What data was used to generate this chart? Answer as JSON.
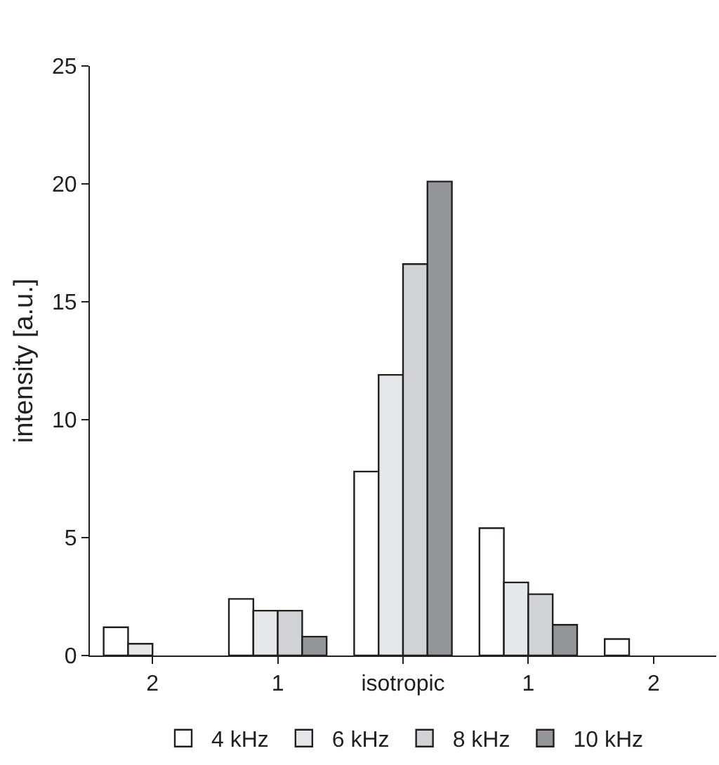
{
  "chart_data": {
    "type": "bar",
    "ylabel": "intensity [a.u.]",
    "categories": [
      "2",
      "1",
      "isotropic",
      "1",
      "2"
    ],
    "series": [
      {
        "name": "4 kHz",
        "color": "#ffffff",
        "values": [
          1.2,
          2.4,
          7.8,
          5.4,
          0.7
        ]
      },
      {
        "name": "6 kHz",
        "color": "#e6e7e8",
        "values": [
          0.5,
          1.9,
          11.9,
          3.1,
          null
        ]
      },
      {
        "name": "8 kHz",
        "color": "#d1d2d4",
        "values": [
          null,
          1.9,
          16.6,
          2.6,
          null
        ]
      },
      {
        "name": "10 kHz",
        "color": "#939598",
        "values": [
          null,
          0.8,
          20.1,
          1.3,
          null
        ]
      }
    ],
    "ylim": [
      0,
      25
    ],
    "yticks": [
      0,
      5,
      10,
      15,
      20,
      25
    ],
    "legend": "bottom"
  }
}
